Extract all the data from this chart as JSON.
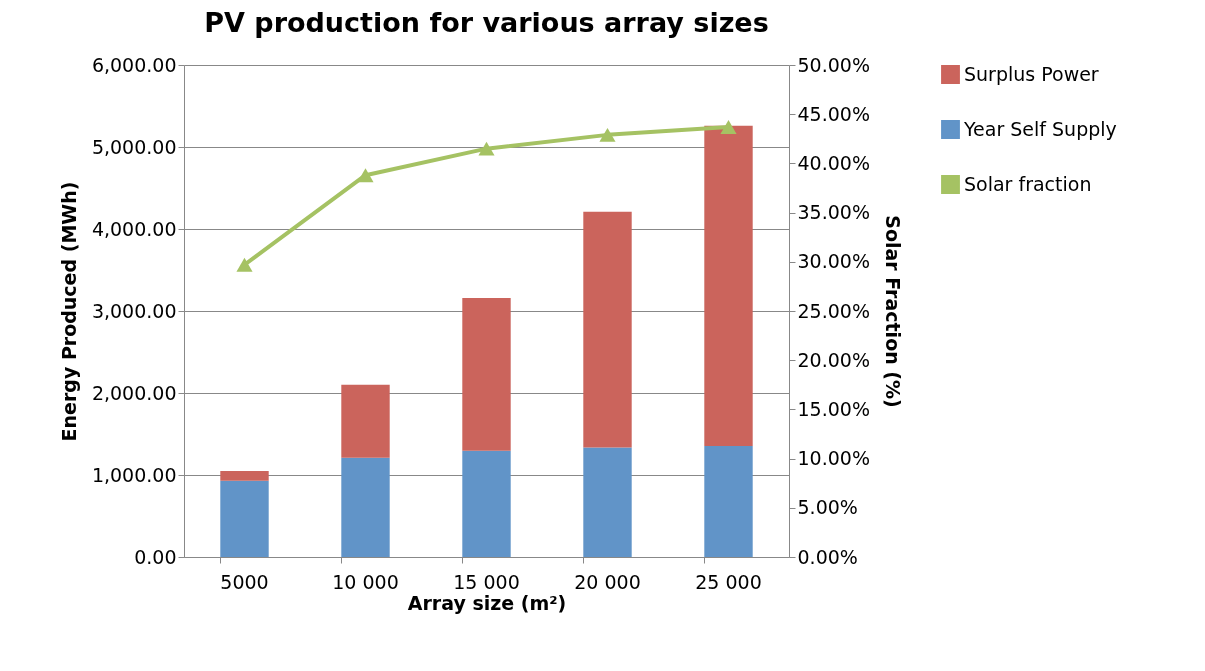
{
  "chart_data": {
    "type": "bar",
    "title": "PV production for various array sizes",
    "xlabel": "Array size (m²)",
    "ylabel": "Energy Produced (MWh)",
    "y2label": "Solar Fraction (%)",
    "categories": [
      "5000",
      "10 000",
      "15 000",
      "20 000",
      "25 000"
    ],
    "stacked": true,
    "series": [
      {
        "name": "Year Self Supply",
        "color": "#6194c8",
        "values": [
          929,
          1209,
          1297,
          1335,
          1355
        ]
      },
      {
        "name": "Surplus Power",
        "color": "#cb645c",
        "values": [
          121,
          891,
          1862,
          2874,
          3904
        ]
      },
      {
        "name": "Solar fraction",
        "type": "line",
        "axis": "y2",
        "color": "#a5c263",
        "marker": "triangle",
        "line_style": "solid",
        "values": [
          29.7,
          38.8,
          41.5,
          42.9,
          43.7
        ]
      }
    ],
    "ylim": [
      0,
      6000
    ],
    "yticks": [
      {
        "value": 0,
        "label": "0.00"
      },
      {
        "value": 1000,
        "label": "1,000.00"
      },
      {
        "value": 2000,
        "label": "2,000.00"
      },
      {
        "value": 3000,
        "label": "3,000.00"
      },
      {
        "value": 4000,
        "label": "4,000.00"
      },
      {
        "value": 5000,
        "label": "5,000.00"
      },
      {
        "value": 6000,
        "label": "6,000.00"
      }
    ],
    "y2lim": [
      0,
      50
    ],
    "y2ticks": [
      {
        "value": 0,
        "label": "0.00%"
      },
      {
        "value": 5,
        "label": "5.00%"
      },
      {
        "value": 10,
        "label": "10.00%"
      },
      {
        "value": 15,
        "label": "15.00%"
      },
      {
        "value": 20,
        "label": "20.00%"
      },
      {
        "value": 25,
        "label": "25.00%"
      },
      {
        "value": 30,
        "label": "30.00%"
      },
      {
        "value": 35,
        "label": "35.00%"
      },
      {
        "value": 40,
        "label": "40.00%"
      },
      {
        "value": 45,
        "label": "45.00%"
      },
      {
        "value": 50,
        "label": "50.00%"
      }
    ],
    "grid": "y",
    "legend": "right"
  }
}
